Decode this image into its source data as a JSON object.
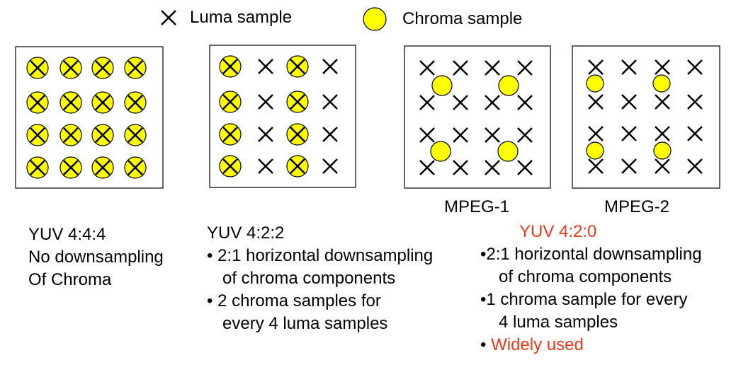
{
  "legend": {
    "luma_label": "Luma sample",
    "chroma_label": "Chroma sample"
  },
  "colors": {
    "chroma_fill": "#ffff00",
    "highlight": "#e8381e",
    "stroke": "#000000"
  },
  "panels": {
    "mpeg1_caption": "MPEG-1",
    "mpeg2_caption": "MPEG-2"
  },
  "yuv444": {
    "title": "YUV 4:4:4",
    "line1": "No downsampling",
    "line2": "Of Chroma"
  },
  "yuv422": {
    "title": "YUV 4:2:2",
    "bullet1_line1": "• 2:1 horizontal downsampling",
    "bullet1_line2": "of chroma components",
    "bullet2_line1": "• 2 chroma samples for",
    "bullet2_line2": "every 4 luma samples"
  },
  "yuv420": {
    "title": "YUV 4:2:0",
    "bullet1_line1": "•2:1 horizontal downsampling",
    "bullet1_line2": "of chroma components",
    "bullet2_line1": "•1 chroma sample for every",
    "bullet2_line2": "4 luma samples",
    "bullet3_marker": "•",
    "bullet3_text": "Widely used"
  }
}
